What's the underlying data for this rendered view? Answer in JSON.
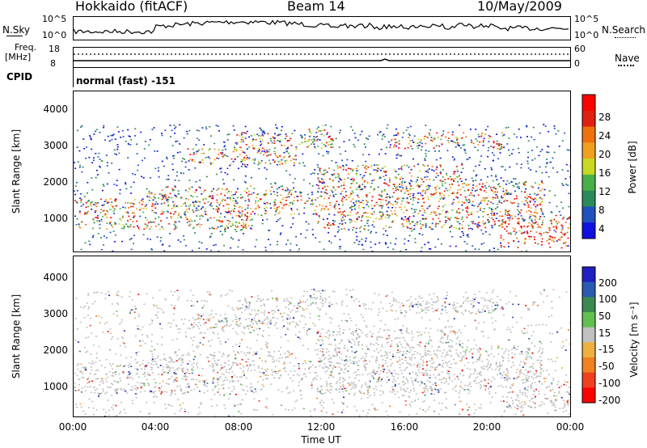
{
  "header": {
    "station": "Hokkaido (fitACF)",
    "beam": "Beam 14",
    "date": "10/May/2009"
  },
  "top_panels": {
    "nsky_label": "N.Sky",
    "nsky_ticks": [
      "10^5",
      "10^0"
    ],
    "nsearch_label": "N.Search",
    "freq_label_1": "Freq.",
    "freq_label_2": "[MHz]",
    "freq_ticks": [
      "18",
      "8"
    ],
    "nave_ticks": [
      "60",
      "0"
    ],
    "nave_label": "Nave",
    "cpid_label": "CPID",
    "cpid_value": "normal (fast) -151"
  },
  "colors": {
    "power_scale": [
      "#1010e0",
      "#2050c0",
      "#2a8a5a",
      "#48b048",
      "#c8d820",
      "#f0a020",
      "#f07010",
      "#e02010",
      "#ff0000"
    ],
    "velocity_scale": [
      "#2020c0",
      "#2a5ab0",
      "#3a8a50",
      "#60c050",
      "#c0c0c0",
      "#f0b040",
      "#f08020",
      "#f04020",
      "#ff0000"
    ]
  },
  "chart_data": [
    {
      "type": "heatmap",
      "title": "Power",
      "xlabel": "Time UT",
      "ylabel": "Slant Range [km]",
      "xlim": [
        "00:00",
        "24:00"
      ],
      "ylim": [
        180,
        4600
      ],
      "x_ticks": [
        "00:00",
        "04:00",
        "08:00",
        "12:00",
        "16:00",
        "20:00",
        "00:00"
      ],
      "y_ticks": [
        1000,
        2000,
        3000,
        4000
      ],
      "colorbar": {
        "label": "Power [dB]",
        "ticks": [
          "28",
          "24",
          "20",
          "16",
          "12",
          "8",
          "4"
        ],
        "range": [
          0,
          30
        ]
      }
    },
    {
      "type": "heatmap",
      "title": "Velocity",
      "xlabel": "Time UT",
      "ylabel": "Slant Range [km]",
      "xlim": [
        "00:00",
        "24:00"
      ],
      "ylim": [
        180,
        4600
      ],
      "x_ticks": [
        "00:00",
        "04:00",
        "08:00",
        "12:00",
        "16:00",
        "20:00",
        "00:00"
      ],
      "y_ticks": [
        1000,
        2000,
        3000,
        4000
      ],
      "colorbar": {
        "label": "Velocity [m s⁻¹]",
        "ticks": [
          "200",
          "100",
          "50",
          "15",
          "-15",
          "-50",
          "-100",
          "-200"
        ],
        "range": [
          -250,
          250
        ]
      }
    }
  ],
  "x_axis": {
    "label": "Time UT",
    "ticks": [
      "00:00",
      "04:00",
      "08:00",
      "12:00",
      "16:00",
      "20:00",
      "00:00"
    ]
  }
}
